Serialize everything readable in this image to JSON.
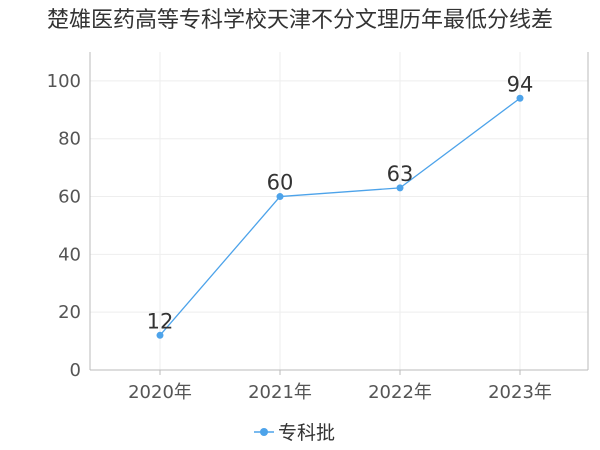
{
  "chart_data": {
    "type": "line",
    "title": "楚雄医药高等专科学校天津不分文理历年最低分线差",
    "categories": [
      "2020年",
      "2021年",
      "2022年",
      "2023年"
    ],
    "series": [
      {
        "name": "专科批",
        "values": [
          12,
          60,
          63,
          94
        ]
      }
    ],
    "ylim": [
      0,
      110
    ],
    "yticks": [
      0,
      20,
      40,
      60,
      80,
      100
    ],
    "grid": true,
    "legend": "bottom",
    "colors": {
      "series": "#4da3ea",
      "axis": "#bbbbbb",
      "grid": "#eeeeee"
    }
  }
}
